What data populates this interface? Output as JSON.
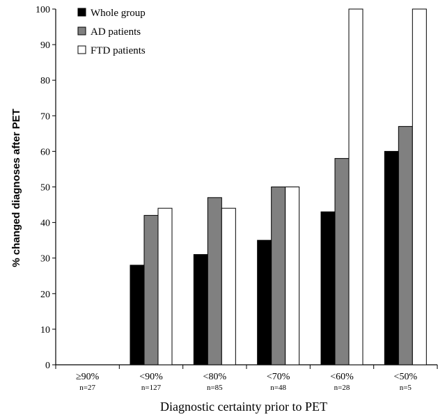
{
  "chart_data": {
    "type": "bar",
    "title": "",
    "xlabel": "Diagnostic certainty prior to PET",
    "ylabel": "% changed diagnoses after PET",
    "ylim": [
      0,
      100
    ],
    "yticks": [
      0,
      10,
      20,
      30,
      40,
      50,
      60,
      70,
      80,
      90,
      100
    ],
    "categories": [
      "≥90%",
      "<90%",
      "<80%",
      "<70%",
      "<60%",
      "<50%"
    ],
    "sample_sizes": [
      "n=27",
      "n=127",
      "n=85",
      "n=48",
      "n=28",
      "n=5"
    ],
    "legend_position": "top-left",
    "grid": false,
    "series": [
      {
        "name": "Whole group",
        "color": "#000000",
        "values": [
          0,
          28,
          31,
          35,
          43,
          60
        ]
      },
      {
        "name": "AD patients",
        "color": "#808080",
        "values": [
          0,
          42,
          47,
          50,
          58,
          67
        ]
      },
      {
        "name": "FTD patients",
        "color": "#ffffff",
        "values": [
          0,
          44,
          44,
          50,
          100,
          100
        ]
      }
    ]
  }
}
